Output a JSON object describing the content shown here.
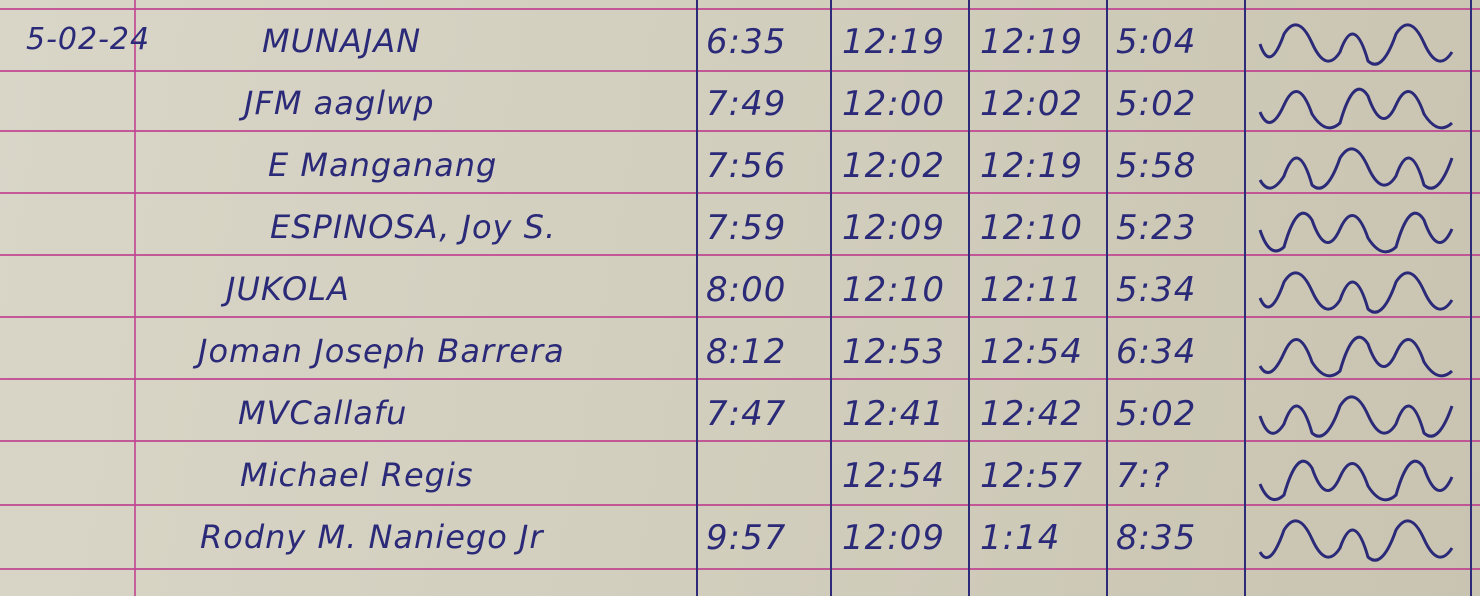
{
  "log": {
    "date": "5-02-24",
    "rows": [
      {
        "name": "MUNAJAN",
        "time_in": "6:35",
        "lunch_out": "12:19",
        "lunch_in": "12:19",
        "time_out": "5:04"
      },
      {
        "name": "JFM aaglwp",
        "time_in": "7:49",
        "lunch_out": "12:00",
        "lunch_in": "12:02",
        "time_out": "5:02"
      },
      {
        "name": "E Manganang",
        "time_in": "7:56",
        "lunch_out": "12:02",
        "lunch_in": "12:19",
        "time_out": "5:58"
      },
      {
        "name": "ESPINOSA, Joy S.",
        "time_in": "7:59",
        "lunch_out": "12:09",
        "lunch_in": "12:10",
        "time_out": "5:23"
      },
      {
        "name": "JUKOLA",
        "time_in": "8:00",
        "lunch_out": "12:10",
        "lunch_in": "12:11",
        "time_out": "5:34"
      },
      {
        "name": "Joman Joseph Barrera",
        "time_in": "8:12",
        "lunch_out": "12:53",
        "lunch_in": "12:54",
        "time_out": "6:34"
      },
      {
        "name": "MVCallafu",
        "time_in": "7:47",
        "lunch_out": "12:41",
        "lunch_in": "12:42",
        "time_out": "5:02"
      },
      {
        "name": "Michael Regis",
        "time_in": "",
        "lunch_out": "12:54",
        "lunch_in": "12:57",
        "time_out": "7:?"
      },
      {
        "name": "Rodny M. Naniego Jr",
        "time_in": "9:57",
        "lunch_out": "12:09",
        "lunch_in": "1:14",
        "time_out": "8:35"
      }
    ]
  },
  "colors": {
    "ink": "#2b2a78",
    "rule": "#c0428f",
    "paper": "#d6d2c3"
  }
}
